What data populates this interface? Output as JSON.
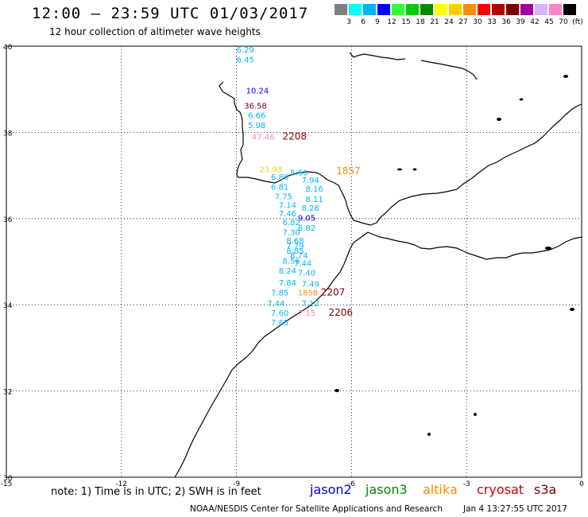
{
  "header": {
    "title": "12:00 – 23:59 UTC 01/03/2017",
    "subtitle": "12 hour collection of altimeter wave heights"
  },
  "scale": {
    "labels": [
      "3",
      "6",
      "9",
      "12",
      "15",
      "18",
      "21",
      "24",
      "27",
      "30",
      "33",
      "36",
      "39",
      "42",
      "45",
      "70",
      "(ft)"
    ],
    "colors": [
      "#7f7f7f",
      "#00ffff",
      "#00b4ff",
      "#0000ff",
      "#33ff33",
      "#00cc00",
      "#008a00",
      "#ffff00",
      "#ffcc00",
      "#ff8c00",
      "#ff0000",
      "#b40000",
      "#7a0000",
      "#a000a0",
      "#d2b4ff",
      "#ff82c8",
      "#000000"
    ]
  },
  "chart_data": {
    "type": "scatter",
    "title": "12:00 – 23:59 UTC 01/03/2017",
    "subtitle": "12 hour collection of altimeter wave heights",
    "xlabel": "",
    "ylabel": "",
    "xlim": [
      -15,
      0
    ],
    "ylim": [
      30,
      40
    ],
    "x_ticks": [
      "-15",
      "-12",
      "-9",
      "-6",
      "-3",
      "0"
    ],
    "y_ticks": [
      "30",
      "32",
      "34",
      "36",
      "38",
      "40"
    ],
    "x_tick_values": [
      -15,
      -12,
      -9,
      -6,
      -3,
      0
    ],
    "y_tick_values": [
      30,
      32,
      34,
      36,
      38,
      40
    ],
    "grid": true,
    "points": [
      {
        "lon": -9.0,
        "lat": 39.85,
        "label": "6.29",
        "color": "#00b4ff"
      },
      {
        "lon": -9.0,
        "lat": 39.62,
        "label": "6.45",
        "color": "#00b4ff"
      },
      {
        "lon": -8.75,
        "lat": 38.9,
        "label": "10.24",
        "color": "#0000ff"
      },
      {
        "lon": -8.8,
        "lat": 38.55,
        "label": "36.58",
        "color": "#7a0000"
      },
      {
        "lon": -8.7,
        "lat": 38.33,
        "label": "6.66",
        "color": "#00b4ff"
      },
      {
        "lon": -8.7,
        "lat": 38.1,
        "label": "5.98",
        "color": "#00b4ff"
      },
      {
        "lon": -8.6,
        "lat": 37.83,
        "label": "47.46",
        "color": "#ff82c8"
      },
      {
        "lon": -8.4,
        "lat": 37.08,
        "label": "23.93",
        "color": "#ffcc00"
      },
      {
        "lon": -7.6,
        "lat": 37.0,
        "label": "8.60",
        "color": "#00b4ff"
      },
      {
        "lon": -8.1,
        "lat": 36.9,
        "label": "6.80",
        "color": "#00b4ff"
      },
      {
        "lon": -7.3,
        "lat": 36.83,
        "label": "7.94",
        "color": "#00b4ff"
      },
      {
        "lon": -8.1,
        "lat": 36.67,
        "label": "6.81",
        "color": "#00b4ff"
      },
      {
        "lon": -7.2,
        "lat": 36.62,
        "label": "8.16",
        "color": "#00b4ff"
      },
      {
        "lon": -8.0,
        "lat": 36.45,
        "label": "7.75",
        "color": "#00b4ff"
      },
      {
        "lon": -7.2,
        "lat": 36.38,
        "label": "8.11",
        "color": "#00b4ff"
      },
      {
        "lon": -7.9,
        "lat": 36.25,
        "label": "7.14",
        "color": "#00b4ff"
      },
      {
        "lon": -7.3,
        "lat": 36.18,
        "label": "8.28",
        "color": "#00b4ff"
      },
      {
        "lon": -7.9,
        "lat": 36.05,
        "label": "7.46",
        "color": "#00b4ff"
      },
      {
        "lon": -7.4,
        "lat": 35.95,
        "label": "9.05",
        "color": "#0000ff"
      },
      {
        "lon": -7.8,
        "lat": 35.85,
        "label": "6.82",
        "color": "#00b4ff"
      },
      {
        "lon": -7.4,
        "lat": 35.72,
        "label": "8.82",
        "color": "#00b4ff"
      },
      {
        "lon": -7.8,
        "lat": 35.62,
        "label": "7.30",
        "color": "#00b4ff"
      },
      {
        "lon": -7.7,
        "lat": 35.42,
        "label": "8.68",
        "color": "#00b4ff"
      },
      {
        "lon": -7.7,
        "lat": 35.3,
        "label": "7.79",
        "color": "#00b4ff"
      },
      {
        "lon": -7.7,
        "lat": 35.18,
        "label": "8.85",
        "color": "#00b4ff"
      },
      {
        "lon": -7.6,
        "lat": 35.08,
        "label": "8.74",
        "color": "#00b4ff"
      },
      {
        "lon": -7.8,
        "lat": 34.95,
        "label": "8.56",
        "color": "#00b4ff"
      },
      {
        "lon": -7.5,
        "lat": 34.9,
        "label": "7.44",
        "color": "#00b4ff"
      },
      {
        "lon": -7.9,
        "lat": 34.72,
        "label": "8.24",
        "color": "#00b4ff"
      },
      {
        "lon": -7.4,
        "lat": 34.68,
        "label": "7.40",
        "color": "#00b4ff"
      },
      {
        "lon": -7.9,
        "lat": 34.45,
        "label": "7.84",
        "color": "#00b4ff"
      },
      {
        "lon": -7.3,
        "lat": 34.42,
        "label": "7.49",
        "color": "#00b4ff"
      },
      {
        "lon": -8.1,
        "lat": 34.22,
        "label": "7.85",
        "color": "#00b4ff"
      },
      {
        "lon": -7.4,
        "lat": 34.22,
        "label": "1858",
        "color": "#ff8c00"
      },
      {
        "lon": -8.2,
        "lat": 33.97,
        "label": "7.44",
        "color": "#00b4ff"
      },
      {
        "lon": -7.3,
        "lat": 33.97,
        "label": "7.12",
        "color": "#00b4ff"
      },
      {
        "lon": -8.1,
        "lat": 33.75,
        "label": "7.60",
        "color": "#00b4ff"
      },
      {
        "lon": -7.4,
        "lat": 33.75,
        "label": "7.15",
        "color": "#ff82c8"
      },
      {
        "lon": -8.1,
        "lat": 33.52,
        "label": "7.65",
        "color": "#00b4ff"
      }
    ],
    "time_labels": [
      {
        "lon": -7.8,
        "lat": 37.83,
        "label": "2208",
        "color": "#7a0000"
      },
      {
        "lon": -6.4,
        "lat": 37.03,
        "label": "1857",
        "color": "#ff8c00"
      },
      {
        "lon": -6.8,
        "lat": 34.22,
        "label": "2207",
        "color": "#7a0000"
      },
      {
        "lon": -6.6,
        "lat": 33.75,
        "label": "2206",
        "color": "#7a0000"
      }
    ]
  },
  "footer": {
    "note": "note: 1) Time is in UTC; 2) SWH is in feet",
    "credit": "NOAA/NESDIS Center for Satellite Applications and Research",
    "date": "Jan  4 13:27:55 UTC 2017"
  },
  "legend": [
    {
      "label": "jason2",
      "color": "#0000cc"
    },
    {
      "label": "jason3",
      "color": "#008a00"
    },
    {
      "label": "altika",
      "color": "#ff8c00"
    },
    {
      "label": "cryosat",
      "color": "#cc0000"
    },
    {
      "label": "s3a",
      "color": "#7a0000"
    }
  ]
}
